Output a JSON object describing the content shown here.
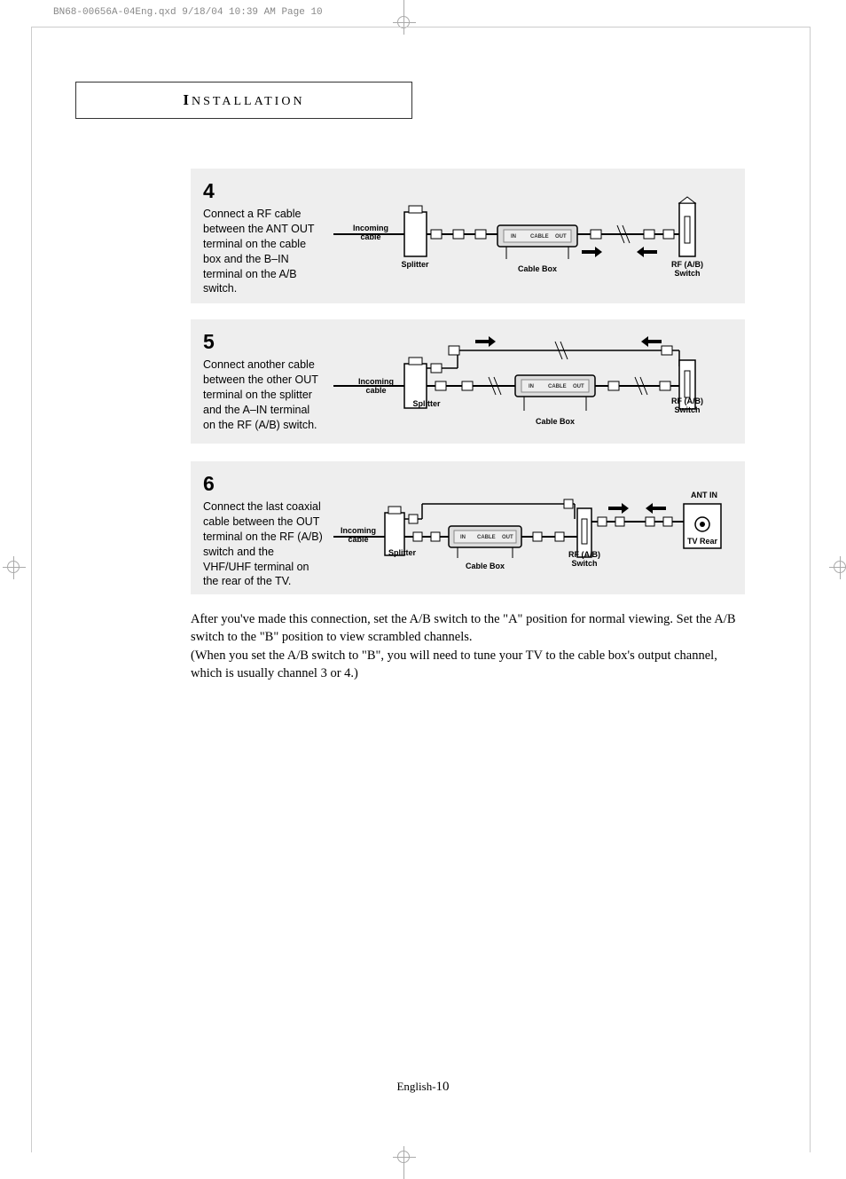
{
  "print_header": "BN68-00656A-04Eng.qxd  9/18/04 10:39 AM  Page 10",
  "section_title_cap": "I",
  "section_title_rest": "NSTALLATION",
  "steps": [
    {
      "num": "4",
      "text": "Connect a RF cable between the ANT OUT terminal on the cable box and the B–IN terminal on the A/B switch."
    },
    {
      "num": "5",
      "text": "Connect another cable between the other OUT terminal on the splitter and the A–IN terminal on the RF (A/B) switch."
    },
    {
      "num": "6",
      "text": "Connect the last coaxial cable between the OUT terminal on the RF (A/B) switch and the VHF/UHF terminal on the rear of the TV."
    }
  ],
  "diagram_labels": {
    "incoming": "Incoming",
    "cable": "cable",
    "splitter": "Splitter",
    "cable_box": "Cable  Box",
    "rf_switch_1": "RF  (A/B)",
    "rf_switch_2": "Switch",
    "ant_in": "ANT IN",
    "tv_rear": "TV  Rear",
    "in": "IN",
    "cable_sm": "CABLE",
    "out": "OUT"
  },
  "body_text": "After you've made this connection, set the A/B switch to the \"A\" position for normal viewing. Set the A/B switch to the \"B\" position to view scrambled channels.\n(When you set the A/B switch to \"B\", you will need to tune your TV to the cable box's output channel, which is usually channel 3 or 4.)",
  "footer_lang": "English-",
  "footer_page": "10",
  "colors": {
    "step_bg": "#eeeeee",
    "border": "#333333",
    "faint": "#cccccc"
  }
}
